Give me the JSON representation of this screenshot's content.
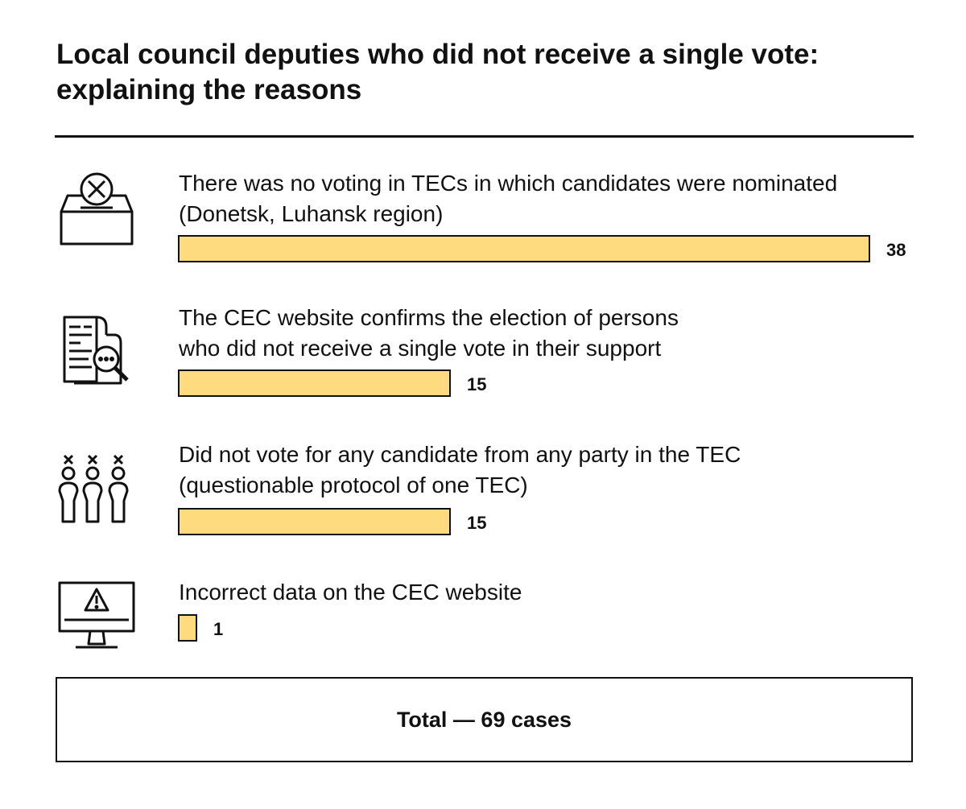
{
  "chart_data": {
    "type": "bar",
    "orientation": "horizontal",
    "title": "Local council deputies who did not receive a single vote: explaining the reasons",
    "categories": [
      "There was no voting in TECs in which candidates were nominated\n(Donetsk, Luhansk region)",
      "The CEC website confirms the election of persons\nwho did not receive a single vote in their support",
      "Did not vote for any candidate from any party in the TEC\n(questionable protocol of one TEC)",
      "Incorrect data on the CEC website"
    ],
    "values": [
      38,
      15,
      15,
      1
    ],
    "xlim": [
      0,
      38
    ],
    "icons": [
      "ballot-box-icon",
      "document-search-icon",
      "voters-crossed-icon",
      "monitor-warning-icon"
    ],
    "bar_color": "#ffdb7f",
    "total_label": "Total — 69 cases"
  }
}
